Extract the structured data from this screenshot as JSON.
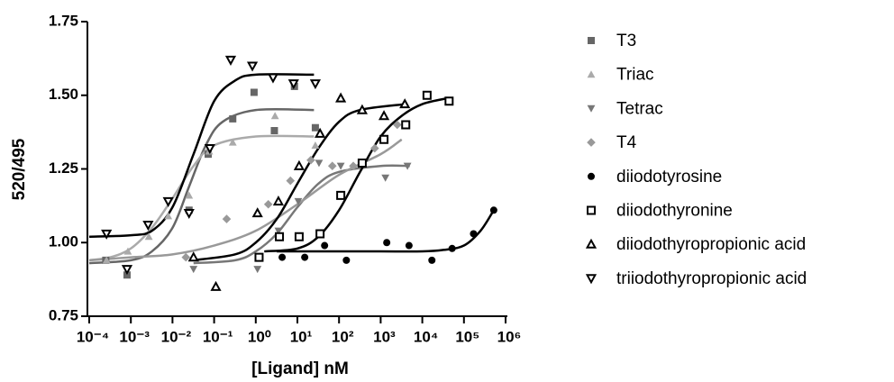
{
  "chart_data": {
    "type": "scatter",
    "x_label": "[Ligand] nM",
    "y_label": "520/495",
    "xscale": "log",
    "xlim": [
      0.0001,
      1000000.0
    ],
    "ylim": [
      0.75,
      1.75
    ],
    "xticks": [
      {
        "value": 0.0001,
        "label": "10⁻⁴"
      },
      {
        "value": 0.001,
        "label": "10⁻³"
      },
      {
        "value": 0.01,
        "label": "10⁻²"
      },
      {
        "value": 0.1,
        "label": "10⁻¹"
      },
      {
        "value": 1,
        "label": "10⁰"
      },
      {
        "value": 10,
        "label": "10¹"
      },
      {
        "value": 100,
        "label": "10²"
      },
      {
        "value": 1000,
        "label": "10³"
      },
      {
        "value": 10000,
        "label": "10⁴"
      },
      {
        "value": 100000,
        "label": "10⁵"
      },
      {
        "value": 1000000,
        "label": "10⁶"
      }
    ],
    "yticks": [
      0.75,
      {
        "value": 1.0,
        "label": "1.00"
      },
      1.25,
      {
        "value": 1.5,
        "label": "1.50"
      },
      1.75
    ],
    "legend": "right",
    "series": [
      {
        "name": "T3",
        "color": "#666666",
        "marker": "square",
        "x": [
          0.00025,
          0.00081,
          0.025,
          0.072,
          0.28,
          0.91,
          2.8,
          8.5,
          27
        ],
        "values": [
          0.94,
          0.89,
          1.11,
          1.3,
          1.42,
          1.51,
          1.38,
          1.53,
          1.39
        ],
        "fit_x": [
          0.0001,
          0.001,
          0.0032,
          0.01,
          0.025,
          0.063,
          0.16,
          1,
          25
        ],
        "fit_values": [
          0.93,
          0.94,
          0.97,
          1.05,
          1.19,
          1.33,
          1.41,
          1.45,
          1.45
        ]
      },
      {
        "name": "Triac",
        "color": "#aaaaaa",
        "marker": "triangle",
        "x": [
          0.00026,
          0.00085,
          0.0027,
          0.0079,
          0.025,
          0.076,
          0.28,
          2.9,
          27
        ],
        "values": [
          0.94,
          0.97,
          1.02,
          1.09,
          1.16,
          1.31,
          1.34,
          1.43,
          1.33
        ],
        "fit_x": [
          0.0001,
          0.00032,
          0.001,
          0.0032,
          0.01,
          0.032,
          0.1,
          1,
          25
        ],
        "fit_values": [
          0.94,
          0.95,
          0.98,
          1.05,
          1.15,
          1.26,
          1.33,
          1.36,
          1.36
        ]
      },
      {
        "name": "Tetrac",
        "color": "#777777",
        "marker": "triangle-down",
        "x": [
          0.032,
          1.1,
          3.5,
          10.5,
          33,
          110,
          380,
          1300,
          4400
        ],
        "values": [
          0.91,
          0.91,
          1.04,
          1.14,
          1.27,
          1.26,
          1.27,
          1.22,
          1.26
        ],
        "fit_x": [
          0.032,
          0.32,
          1,
          3.2,
          10,
          32,
          100,
          1000,
          5000
        ],
        "fit_values": [
          0.93,
          0.94,
          0.97,
          1.03,
          1.12,
          1.2,
          1.24,
          1.26,
          1.26
        ]
      },
      {
        "name": "T4",
        "color": "#999999",
        "marker": "diamond",
        "x": [
          0.021,
          0.2,
          2,
          6.8,
          21,
          69,
          220,
          720,
          2500
        ],
        "values": [
          0.95,
          1.08,
          1.13,
          1.21,
          1.28,
          1.26,
          1.26,
          1.32,
          1.4
        ],
        "fit_x": [
          0.0001,
          0.001,
          0.01,
          0.1,
          1,
          10,
          100,
          1000,
          3200
        ],
        "fit_values": [
          0.94,
          0.95,
          0.96,
          0.99,
          1.04,
          1.13,
          1.23,
          1.3,
          1.35
        ]
      },
      {
        "name": "diiodotyrosine",
        "color": "#000000",
        "marker": "circle",
        "x": [
          4.3,
          15,
          45,
          150,
          1400,
          4800,
          17000,
          52000,
          170000,
          520000
        ],
        "values": [
          0.95,
          0.95,
          0.99,
          0.94,
          1.0,
          0.99,
          0.94,
          0.98,
          1.03,
          1.11
        ],
        "fit_x": [
          3.2,
          10,
          100,
          1000,
          10000,
          32000,
          100000,
          250000,
          520000
        ],
        "fit_values": [
          0.97,
          0.97,
          0.97,
          0.97,
          0.97,
          0.975,
          0.99,
          1.04,
          1.11
        ]
      },
      {
        "name": "diiodothyronine",
        "color": "#000000",
        "marker": "square-open",
        "x": [
          1.2,
          3.7,
          11,
          35,
          110,
          360,
          1200,
          4000,
          13000,
          44000
        ],
        "values": [
          0.95,
          1.02,
          1.02,
          1.03,
          1.16,
          1.27,
          1.35,
          1.4,
          1.5,
          1.48
        ],
        "fit_x": [
          1.6,
          10,
          32,
          100,
          320,
          1000,
          3200,
          10000,
          40000
        ],
        "fit_values": [
          0.97,
          0.98,
          1.02,
          1.11,
          1.24,
          1.36,
          1.43,
          1.47,
          1.49
        ]
      },
      {
        "name": "diiodothyropropionic acid",
        "color": "#000000",
        "marker": "triangle-open",
        "x": [
          0.032,
          0.11,
          1.1,
          3.5,
          11,
          35,
          110,
          360,
          1200,
          3800
        ],
        "values": [
          0.95,
          0.85,
          1.1,
          1.14,
          1.26,
          1.37,
          1.49,
          1.45,
          1.43,
          1.47
        ],
        "fit_x": [
          0.032,
          0.32,
          1,
          3.2,
          10,
          32,
          100,
          320,
          4000
        ],
        "fit_values": [
          0.94,
          0.96,
          1.0,
          1.08,
          1.2,
          1.32,
          1.41,
          1.45,
          1.47
        ]
      },
      {
        "name": "triiodothyropropionic acid",
        "color": "#000000",
        "marker": "triangle-down-open",
        "x": [
          0.00026,
          0.00081,
          0.0026,
          0.0079,
          0.025,
          0.079,
          0.25,
          0.83,
          2.6,
          8.1,
          27
        ],
        "values": [
          1.03,
          0.91,
          1.06,
          1.14,
          1.1,
          1.32,
          1.62,
          1.6,
          1.56,
          1.54,
          1.54
        ],
        "fit_x": [
          0.0001,
          0.001,
          0.0032,
          0.01,
          0.032,
          0.1,
          0.32,
          1,
          25
        ],
        "fit_values": [
          1.02,
          1.025,
          1.04,
          1.12,
          1.3,
          1.48,
          1.55,
          1.57,
          1.57
        ]
      }
    ]
  }
}
